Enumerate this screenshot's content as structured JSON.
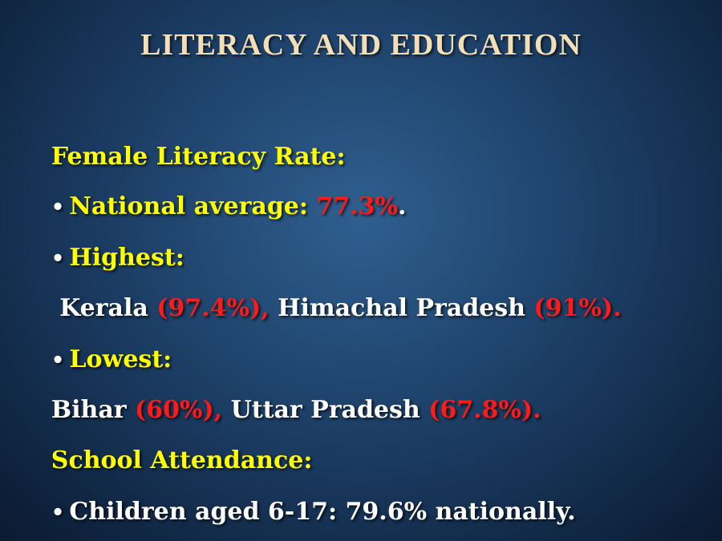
{
  "title": "LITERACY AND EDUCATION",
  "lines": [
    [
      "Female Literacy Rate:"
    ],
    [
      "National average: ",
      "77.3%",
      "."
    ],
    [
      "Highest:"
    ],
    [
      " Kerala ",
      "(97.4%),",
      " Himachal Pradesh ",
      "(91%)."
    ],
    [
      "Lowest:"
    ],
    [
      "Bihar ",
      "(60%),",
      " Uttar Pradesh ",
      "(67.8%)."
    ],
    [
      "School Attendance:"
    ],
    [
      "Children aged 6-17: 79.6% nationally."
    ]
  ]
}
